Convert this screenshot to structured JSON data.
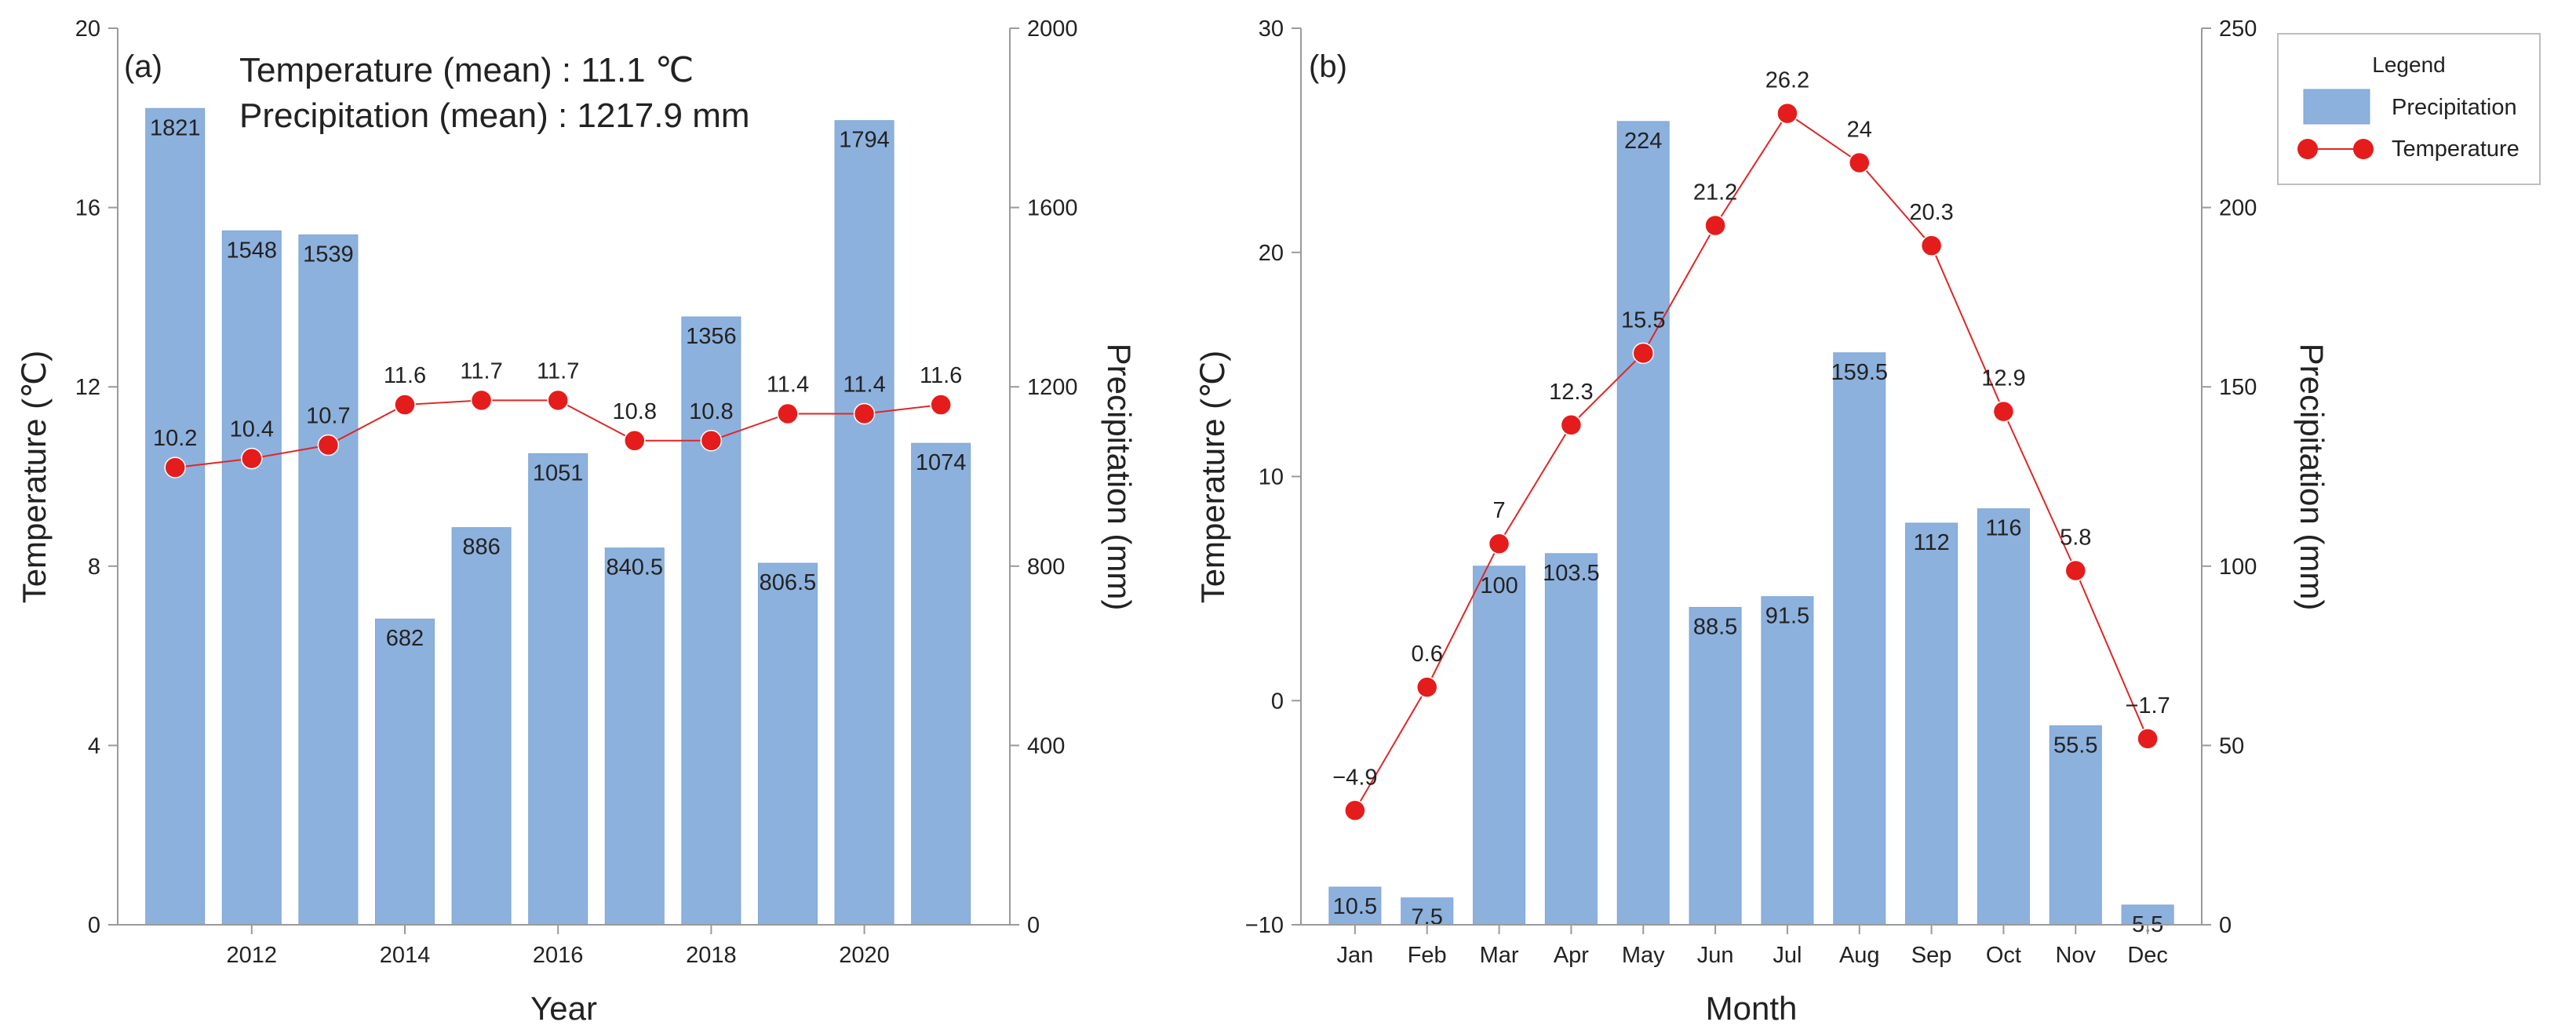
{
  "chart_data": [
    {
      "type": "bar",
      "panel_label": "(a)",
      "annotations": [
        "Temperature (mean) : 11.1 ℃",
        "Precipitation (mean) : 1217.9 mm"
      ],
      "xlabel": "Year",
      "ylabel_left": "Temperature (℃)",
      "ylabel_right": "Precipitation (mm)",
      "x_ticks": [
        "2012",
        "2014",
        "2016",
        "2018",
        "2020"
      ],
      "x_tick_values": [
        2012,
        2014,
        2016,
        2018,
        2020
      ],
      "left_ticks": [
        "0",
        "4",
        "8",
        "12",
        "16",
        "20"
      ],
      "right_ticks": [
        "0",
        "400",
        "800",
        "1200",
        "1600",
        "2000"
      ],
      "xlim": [
        2010.25,
        2021.9
      ],
      "ylim_left": [
        0,
        20
      ],
      "ylim_right": [
        0,
        2000
      ],
      "x": [
        2011,
        2012,
        2013,
        2014,
        2015,
        2016,
        2017,
        2018,
        2019,
        2020,
        2021
      ],
      "series": [
        {
          "name": "Precipitation",
          "axis": "right",
          "kind": "bar",
          "values": [
            1821,
            1548,
            1539,
            682,
            886,
            1051,
            840.5,
            1356,
            806.5,
            1794,
            1074
          ],
          "labels": [
            "1821",
            "1548",
            "1539",
            "682",
            "886",
            "1051",
            "840.5",
            "1356",
            "806.5",
            "1794",
            "1074"
          ]
        },
        {
          "name": "Temperature",
          "axis": "left",
          "kind": "line",
          "values": [
            10.2,
            10.4,
            10.7,
            11.6,
            11.7,
            11.7,
            10.8,
            10.8,
            11.4,
            11.4,
            11.6
          ],
          "labels": [
            "10.2",
            "10.4",
            "10.7",
            "11.6",
            "11.7",
            "11.7",
            "10.8",
            "10.8",
            "11.4",
            "11.4",
            "11.6"
          ]
        }
      ]
    },
    {
      "type": "bar",
      "panel_label": "(b)",
      "xlabel": "Month",
      "ylabel_left": "Temperature (℃)",
      "ylabel_right": "Precipitation (mm)",
      "categories": [
        "Jan",
        "Feb",
        "Mar",
        "Apr",
        "May",
        "Jun",
        "Jul",
        "Aug",
        "Sep",
        "Oct",
        "Nov",
        "Dec"
      ],
      "left_ticks": [
        "−10",
        "0",
        "10",
        "20",
        "30"
      ],
      "left_tick_values": [
        -10,
        0,
        10,
        20,
        30
      ],
      "right_ticks": [
        "0",
        "50",
        "100",
        "150",
        "200",
        "250"
      ],
      "right_tick_values": [
        0,
        50,
        100,
        150,
        200,
        250
      ],
      "ylim_left": [
        -10,
        30
      ],
      "ylim_right": [
        0,
        250
      ],
      "series": [
        {
          "name": "Precipitation",
          "axis": "right",
          "kind": "bar",
          "values": [
            10.5,
            7.5,
            100,
            103.5,
            224,
            88.5,
            91.5,
            159.5,
            112,
            116,
            55.5,
            5.5
          ],
          "labels": [
            "10.5",
            "7.5",
            "100",
            "103.5",
            "224",
            "88.5",
            "91.5",
            "159.5",
            "112",
            "116",
            "55.5",
            "5.5"
          ]
        },
        {
          "name": "Temperature",
          "axis": "left",
          "kind": "line",
          "values": [
            -4.9,
            0.6,
            7,
            12.3,
            15.5,
            21.2,
            26.2,
            24,
            20.3,
            12.9,
            5.8,
            -1.7
          ],
          "labels": [
            "−4.9",
            "0.6",
            "7",
            "12.3",
            "15.5",
            "21.2",
            "26.2",
            "24",
            "20.3",
            "12.9",
            "5.8",
            "−1.7"
          ]
        }
      ]
    }
  ],
  "legend": {
    "title": "Legend",
    "items": [
      {
        "name": "Precipitation",
        "kind": "bar"
      },
      {
        "name": "Temperature",
        "kind": "line"
      }
    ]
  },
  "colors": {
    "bar": "#8db1dd",
    "bar_edge": "#7da5d6",
    "line": "#e02626",
    "marker": "#e51c1c",
    "axis": "#9a9a9a",
    "text": "#222222",
    "legend_border": "#bdbdbd"
  }
}
